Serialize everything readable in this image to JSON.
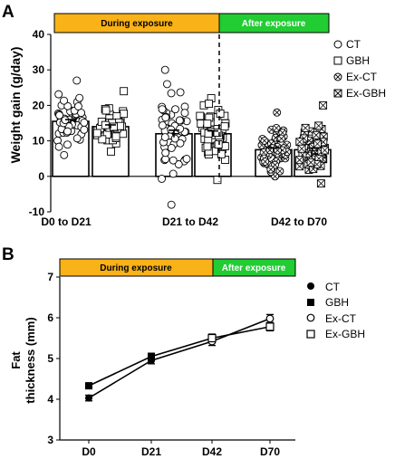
{
  "colors": {
    "during": "#f9b217",
    "after": "#22cc33",
    "ink": "#000000",
    "marker_fill": "#ffffff"
  },
  "chart_data": [
    {
      "panel_label": "A",
      "type": "bar",
      "banner": {
        "during": "During exposure",
        "after": "After exposure"
      },
      "ylabel": "Weight gain (g/day)",
      "ylim": [
        -10,
        40
      ],
      "yticks": [
        -10,
        0,
        10,
        20,
        30,
        40
      ],
      "categories": [
        "D0 to D21",
        "D21 to D42",
        "D42 to D70"
      ],
      "groups": [
        {
          "category": "D0 to D21",
          "bars": [
            {
              "series": "CT",
              "mean": 15.5,
              "sem": 0.5,
              "spread": [
                6,
                27
              ]
            },
            {
              "series": "GBH",
              "mean": 14,
              "sem": 0.5,
              "spread": [
                7,
                24
              ]
            }
          ]
        },
        {
          "category": "D21 to D42",
          "bars": [
            {
              "series": "CT",
              "mean": 12,
              "sem": 1.0,
              "spread": [
                -8,
                30
              ]
            },
            {
              "series": "GBH",
              "mean": 12,
              "sem": 0.8,
              "spread": [
                -1,
                22
              ]
            }
          ]
        },
        {
          "category": "D42 to D70",
          "bars": [
            {
              "series": "Ex-CT",
              "mean": 7.5,
              "sem": 0.5,
              "spread": [
                0,
                18
              ]
            },
            {
              "series": "Ex-GBH",
              "mean": 7.5,
              "sem": 0.5,
              "spread": [
                -2,
                20
              ]
            }
          ]
        }
      ],
      "exposure_divider_after": "D21 to D42",
      "legend": {
        "placement": "right",
        "entries": [
          "CT",
          "GBH",
          "Ex-CT",
          "Ex-GBH"
        ]
      }
    },
    {
      "panel_label": "B",
      "type": "line",
      "banner": {
        "during": "During exposure",
        "after": "After exposure"
      },
      "ylabel_lines": [
        "Fat",
        "thickness (mm)"
      ],
      "ylim": [
        3,
        7
      ],
      "yticks": [
        3,
        4,
        5,
        6,
        7
      ],
      "categories": [
        "D0",
        "D21",
        "D42",
        "D70"
      ],
      "series": [
        {
          "name": "CT",
          "marker": "circle-filled",
          "values": [
            4.03,
            4.95,
            5.42,
            null
          ],
          "err": [
            0.07,
            0.08,
            0.1,
            null
          ]
        },
        {
          "name": "GBH",
          "marker": "square-filled",
          "values": [
            4.33,
            5.05,
            5.5,
            null
          ],
          "err": [
            0.07,
            0.08,
            0.1,
            null
          ]
        },
        {
          "name": "Ex-CT",
          "marker": "circle-open",
          "values": [
            null,
            null,
            5.42,
            5.98
          ],
          "err": [
            null,
            null,
            0.0,
            0.1
          ]
        },
        {
          "name": "Ex-GBH",
          "marker": "square-open",
          "values": [
            null,
            null,
            5.5,
            5.78
          ],
          "err": [
            null,
            null,
            0.0,
            0.1
          ]
        }
      ],
      "legend": {
        "placement": "right",
        "entries": [
          "CT",
          "GBH",
          "Ex-CT",
          "Ex-GBH"
        ]
      }
    }
  ]
}
